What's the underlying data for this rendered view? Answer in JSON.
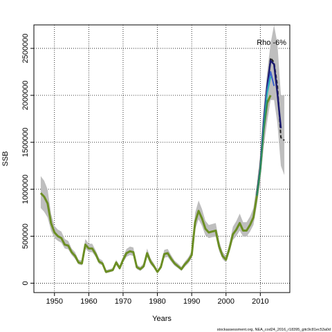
{
  "chart_data": {
    "type": "line",
    "title": "",
    "xlabel": "Years",
    "ylabel": "SSB",
    "annotation": "Rho -6%",
    "credit": "stockassessment.org, NEA_cod24_2016_r18395_gitc9c81ec53a0d",
    "xlim": [
      1944,
      2018.6
    ],
    "ylim": [
      -100000,
      2750000
    ],
    "x_ticks": [
      1950,
      1960,
      1970,
      1980,
      1990,
      2000,
      2010
    ],
    "y_ticks": [
      0,
      500000,
      1000000,
      1500000,
      2000000,
      2500000
    ],
    "grid": true,
    "colors": {
      "band": "#bebebe",
      "base": "#6b8e23",
      "retro_dark": "#1a1a6e",
      "retro_blue": "#3a5fcd",
      "retro_teal": "#2ab3b3",
      "retro_green": "#2e8b57",
      "retro_black": "#222222"
    },
    "series": [
      {
        "x": [
          1946,
          1947,
          1948,
          1949,
          1950,
          1951,
          1952,
          1953,
          1954,
          1955,
          1956,
          1957,
          1958,
          1959,
          1960,
          1961,
          1962,
          1963,
          1964,
          1965,
          1966,
          1967,
          1968,
          1969,
          1970,
          1971,
          1972,
          1973,
          1974,
          1975,
          1976,
          1977,
          1978,
          1979,
          1980,
          1981,
          1982,
          1983,
          1984,
          1985,
          1986,
          1987,
          1988,
          1989,
          1990,
          1991,
          1992,
          1993,
          1994,
          1995,
          1996,
          1997,
          1998,
          1999,
          2000,
          2001,
          2002,
          2003,
          2004,
          2005,
          2006,
          2007,
          2008,
          2009,
          2010,
          2011,
          2012,
          2013
        ],
        "y": [
          960000,
          920000,
          850000,
          640000,
          540000,
          500000,
          480000,
          410000,
          400000,
          330000,
          290000,
          220000,
          210000,
          410000,
          370000,
          370000,
          310000,
          230000,
          210000,
          120000,
          130000,
          140000,
          220000,
          160000,
          250000,
          320000,
          340000,
          330000,
          170000,
          150000,
          180000,
          320000,
          230000,
          180000,
          120000,
          170000,
          310000,
          320000,
          260000,
          210000,
          180000,
          150000,
          200000,
          240000,
          300000,
          650000,
          770000,
          690000,
          580000,
          540000,
          550000,
          560000,
          390000,
          290000,
          250000,
          370000,
          520000,
          570000,
          640000,
          560000,
          560000,
          620000,
          700000,
          930000,
          1220000,
          1650000,
          1920000,
          2000000
        ]
      },
      {
        "x": [
          2009,
          2010,
          2011,
          2012,
          2013,
          2014,
          2015,
          2016,
          2017
        ],
        "y": [
          950000,
          1230000,
          1700000,
          2050000,
          2400000,
          2350000,
          2100000,
          1550000,
          1520000
        ]
      },
      {
        "x": [
          2009,
          2010,
          2011,
          2012,
          2013,
          2014,
          2015,
          2016
        ],
        "y": [
          940000,
          1220000,
          1720000,
          2100000,
          2370000,
          2330000,
          2020000,
          1650000
        ]
      },
      {
        "x": [
          2009,
          2010,
          2011,
          2012,
          2013,
          2014
        ],
        "y": [
          930000,
          1210000,
          1680000,
          2060000,
          2250000,
          2100000
        ]
      },
      {
        "x": [
          2009,
          2010,
          2011,
          2012,
          2013
        ],
        "y": [
          930000,
          1200000,
          1660000,
          2020000,
          2200000
        ]
      },
      {
        "x": [
          2009,
          2010,
          2011,
          2012
        ],
        "y": [
          930000,
          1190000,
          1630000,
          1950000
        ]
      }
    ],
    "confidence_band": {
      "x": [
        1946,
        1947,
        1948,
        1949,
        1950,
        1951,
        1952,
        1953,
        1954,
        1955,
        1956,
        1957,
        1958,
        1959,
        1960,
        1961,
        1962,
        1963,
        1964,
        1965,
        1966,
        1967,
        1968,
        1969,
        1970,
        1971,
        1972,
        1973,
        1974,
        1975,
        1976,
        1977,
        1978,
        1979,
        1980,
        1981,
        1982,
        1983,
        1984,
        1985,
        1986,
        1987,
        1988,
        1989,
        1990,
        1991,
        1992,
        1993,
        1994,
        1995,
        1996,
        1997,
        1998,
        1999,
        2000,
        2001,
        2002,
        2003,
        2004,
        2005,
        2006,
        2007,
        2008,
        2009,
        2010,
        2011,
        2012,
        2013,
        2014,
        2015,
        2016,
        2017
      ],
      "lower": [
        800000,
        760000,
        700000,
        560000,
        480000,
        450000,
        430000,
        370000,
        360000,
        300000,
        260000,
        200000,
        190000,
        370000,
        330000,
        330000,
        280000,
        205000,
        190000,
        105000,
        115000,
        125000,
        195000,
        140000,
        220000,
        280000,
        300000,
        290000,
        150000,
        130000,
        160000,
        280000,
        200000,
        160000,
        105000,
        150000,
        270000,
        280000,
        230000,
        185000,
        160000,
        130000,
        175000,
        210000,
        265000,
        570000,
        680000,
        610000,
        510000,
        480000,
        490000,
        495000,
        340000,
        255000,
        220000,
        330000,
        460000,
        500000,
        560000,
        495000,
        495000,
        550000,
        620000,
        830000,
        1080000,
        1450000,
        1720000,
        1950000,
        1950000,
        1700000,
        1250000,
        1150000
      ],
      "upper": [
        1140000,
        1090000,
        1000000,
        740000,
        610000,
        570000,
        550000,
        470000,
        450000,
        370000,
        330000,
        250000,
        240000,
        470000,
        420000,
        420000,
        350000,
        265000,
        240000,
        140000,
        150000,
        160000,
        250000,
        185000,
        285000,
        365000,
        390000,
        380000,
        195000,
        175000,
        210000,
        370000,
        265000,
        210000,
        140000,
        195000,
        355000,
        365000,
        300000,
        240000,
        210000,
        175000,
        230000,
        275000,
        345000,
        750000,
        880000,
        790000,
        665000,
        620000,
        630000,
        640000,
        450000,
        335000,
        290000,
        425000,
        600000,
        660000,
        740000,
        650000,
        650000,
        710000,
        800000,
        1060000,
        1380000,
        1880000,
        2250000,
        2550000,
        2750000,
        2550000,
        2000000,
        2000000
      ]
    }
  }
}
